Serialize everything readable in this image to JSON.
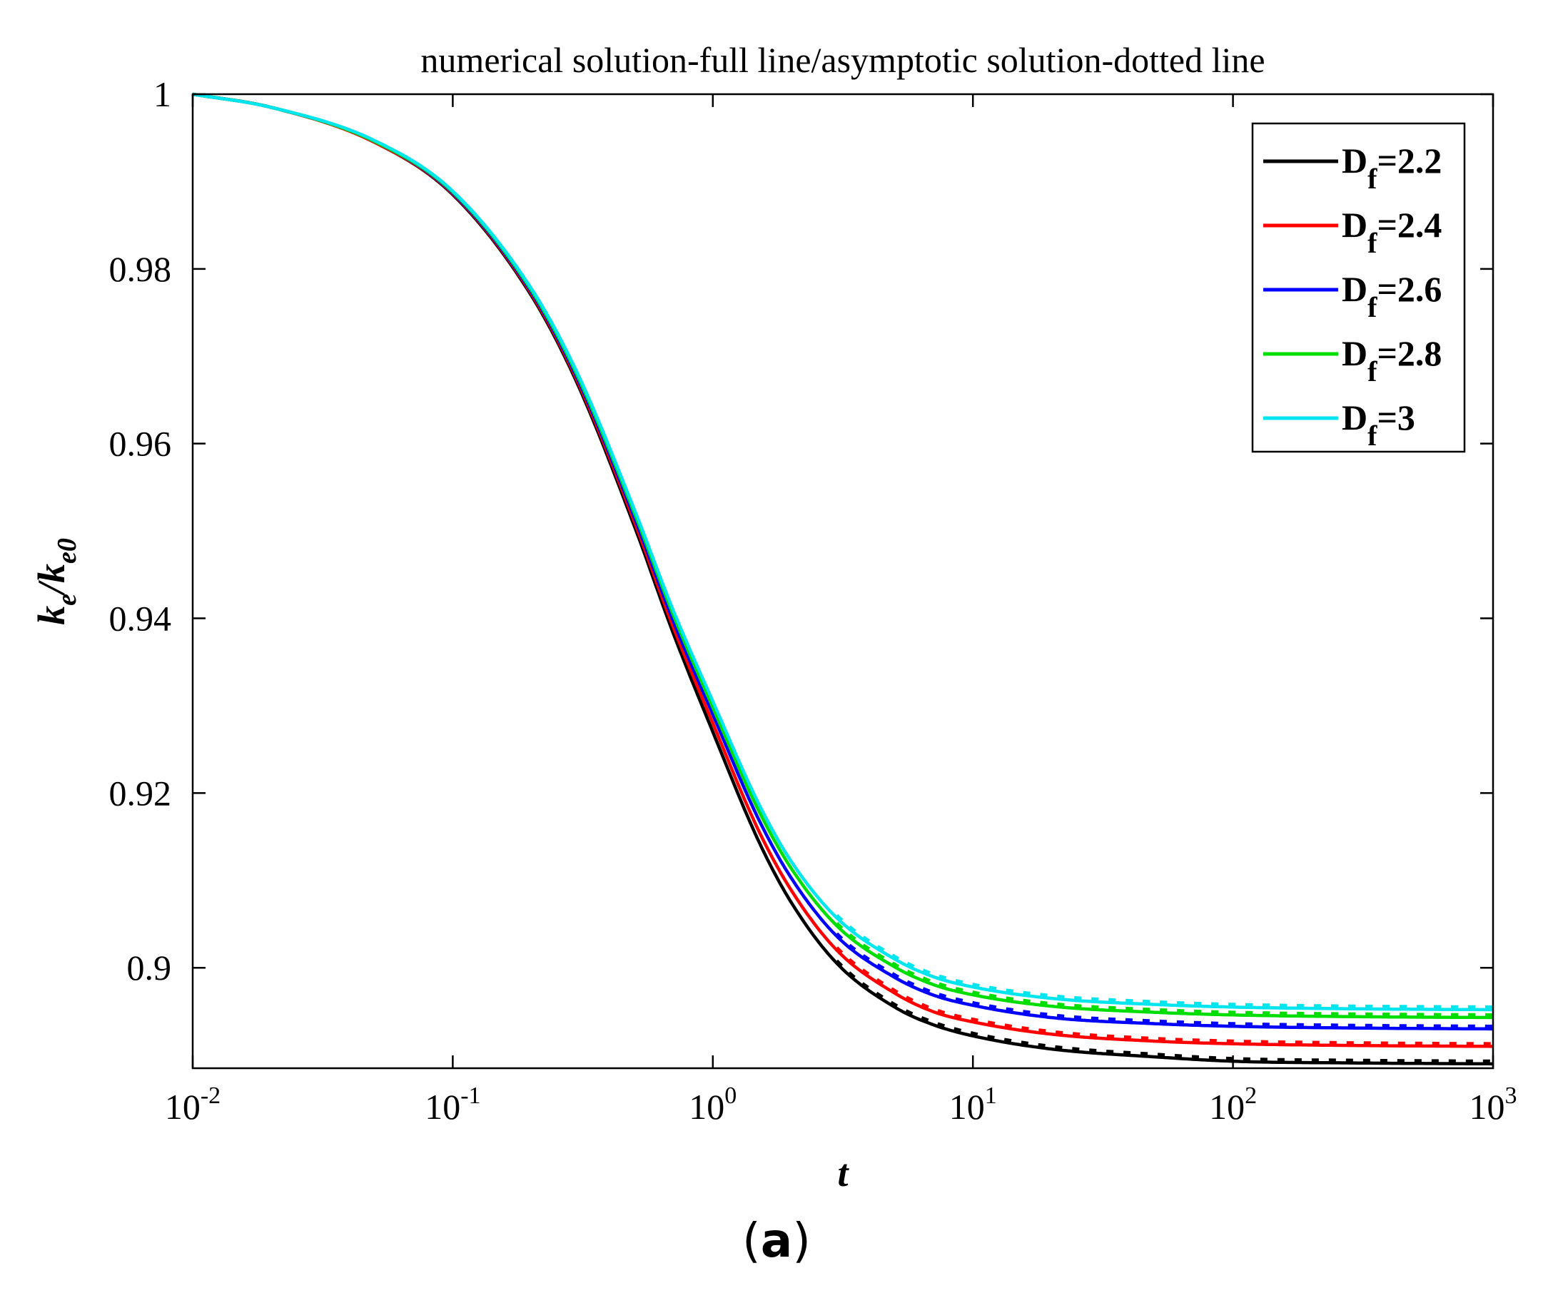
{
  "chart_data": {
    "type": "line",
    "title": "numerical solution-full line/asymptotic solution-dotted line",
    "xlabel": "t",
    "ylabel": {
      "base": "k",
      "sub": "e",
      "mid": "/k",
      "sub2": "e0"
    },
    "xscale": "log",
    "xlim": [
      0.01,
      1000
    ],
    "ylim": [
      0.8885,
      1.0
    ],
    "xticks": [
      {
        "base": "10",
        "exp": "-2",
        "value": 0.01
      },
      {
        "base": "10",
        "exp": "-1",
        "value": 0.1
      },
      {
        "base": "10",
        "exp": "0",
        "value": 1
      },
      {
        "base": "10",
        "exp": "1",
        "value": 10
      },
      {
        "base": "10",
        "exp": "2",
        "value": 100
      },
      {
        "base": "10",
        "exp": "3",
        "value": 1000
      }
    ],
    "yticks": [
      {
        "label": "0.9",
        "value": 0.9
      },
      {
        "label": "0.92",
        "value": 0.92
      },
      {
        "label": "0.94",
        "value": 0.94
      },
      {
        "label": "0.96",
        "value": 0.96
      },
      {
        "label": "0.98",
        "value": 0.98
      },
      {
        "label": "1",
        "value": 1.0
      }
    ],
    "grid": false,
    "legend_position": "top-right",
    "x": [
      0.01,
      0.02,
      0.05,
      0.1,
      0.2,
      0.3,
      0.5,
      0.7,
      1,
      1.5,
      2,
      3,
      5,
      7,
      10,
      20,
      50,
      100,
      300,
      1000
    ],
    "series": [
      {
        "name": "D_f=2.2",
        "legend_base": "D",
        "legend_sub": "f",
        "legend_rest": "=2.2",
        "color": "#000000",
        "values": [
          1.0,
          0.9985,
          0.9945,
          0.9885,
          0.977,
          0.967,
          0.9505,
          0.9385,
          0.927,
          0.9145,
          0.9075,
          0.9005,
          0.8955,
          0.8935,
          0.8922,
          0.8907,
          0.8898,
          0.8893,
          0.8891,
          0.889
        ]
      },
      {
        "name": "D_f=2.4",
        "legend_base": "D",
        "legend_sub": "f",
        "legend_rest": "=2.4",
        "color": "#ff0000",
        "values": [
          1.0,
          0.9985,
          0.9945,
          0.9886,
          0.9772,
          0.9673,
          0.951,
          0.9392,
          0.928,
          0.9157,
          0.9089,
          0.902,
          0.8971,
          0.895,
          0.8938,
          0.8924,
          0.8916,
          0.8913,
          0.8911,
          0.891
        ]
      },
      {
        "name": "D_f=2.6",
        "legend_base": "D",
        "legend_sub": "f",
        "legend_rest": "=2.6",
        "color": "#0000ff",
        "values": [
          1.0,
          0.9985,
          0.9946,
          0.9887,
          0.9774,
          0.9676,
          0.9515,
          0.9399,
          0.929,
          0.917,
          0.9103,
          0.9036,
          0.8989,
          0.8969,
          0.8957,
          0.8943,
          0.8936,
          0.8933,
          0.8931,
          0.893
        ]
      },
      {
        "name": "D_f=2.8",
        "legend_base": "D",
        "legend_sub": "f",
        "legend_rest": "=2.8",
        "color": "#00dd00",
        "values": [
          1.0,
          0.9985,
          0.9946,
          0.9888,
          0.9776,
          0.9679,
          0.952,
          0.9406,
          0.9298,
          0.918,
          0.9114,
          0.9048,
          0.9001,
          0.8981,
          0.8969,
          0.8956,
          0.8949,
          0.8946,
          0.8944,
          0.8943
        ]
      },
      {
        "name": "D_f=3",
        "legend_base": "D",
        "legend_sub": "f",
        "legend_rest": "=3",
        "color": "#00e5ee",
        "values": [
          1.0,
          0.9985,
          0.9947,
          0.9889,
          0.9778,
          0.9682,
          0.9524,
          0.9411,
          0.9305,
          0.9188,
          0.9122,
          0.9057,
          0.901,
          0.899,
          0.8978,
          0.8965,
          0.8958,
          0.8955,
          0.8953,
          0.8952
        ]
      }
    ]
  },
  "figure": {
    "panel_open": "(",
    "panel_letter": "a",
    "panel_close": ")"
  }
}
